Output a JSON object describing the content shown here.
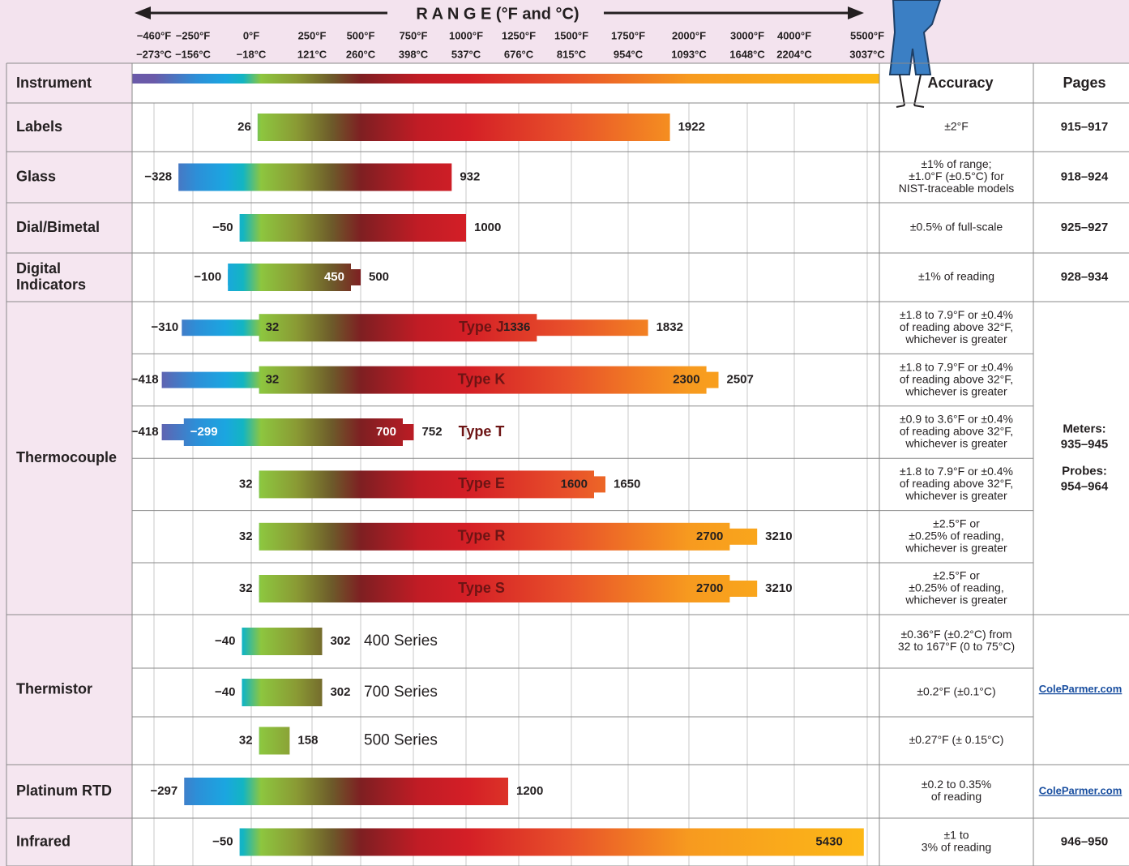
{
  "header": {
    "range_title": "R A N G E (°F and °C)",
    "instrument": "Instrument",
    "accuracy": "Accuracy",
    "pages": "Pages"
  },
  "scale": [
    {
      "value": -460,
      "label": "−460°F",
      "celsius": "−273°C"
    },
    {
      "value": -250,
      "label": "−250°F",
      "celsius": "−156°C"
    },
    {
      "value": 0,
      "label": "0°F",
      "celsius": "−18°C"
    },
    {
      "value": 250,
      "label": "250°F",
      "celsius": "121°C"
    },
    {
      "value": 500,
      "label": "500°F",
      "celsius": "260°C"
    },
    {
      "value": 750,
      "label": "750°F",
      "celsius": "398°C"
    },
    {
      "value": 1000,
      "label": "1000°F",
      "celsius": "537°C"
    },
    {
      "value": 1250,
      "label": "1250°F",
      "celsius": "676°C"
    },
    {
      "value": 1500,
      "label": "1500°F",
      "celsius": "815°C"
    },
    {
      "value": 1750,
      "label": "1750°F",
      "celsius": "954°C"
    },
    {
      "value": 2000,
      "label": "2000°F",
      "celsius": "1093°C"
    },
    {
      "value": 3000,
      "label": "3000°F",
      "celsius": "1648°C"
    },
    {
      "value": 4000,
      "label": "4000°F",
      "celsius": "2204°C"
    },
    {
      "value": 5500,
      "label": "5500°F",
      "celsius": "3037°C"
    }
  ],
  "rows": [
    {
      "instrument": [
        "Labels"
      ],
      "pages": [
        [
          "915–917"
        ]
      ],
      "bars": [
        {
          "accuracy": [
            "±2°F"
          ],
          "wide_low": {
            "value": 26,
            "label": "26"
          },
          "wide_high": {
            "value": 1922,
            "label": "1922"
          }
        }
      ]
    },
    {
      "instrument": [
        "Glass"
      ],
      "pages": [
        [
          "918–924"
        ]
      ],
      "bars": [
        {
          "accuracy": [
            "±1% of range;",
            "±1.0°F (±0.5°C) for",
            "NIST-traceable models"
          ],
          "wide_low": {
            "value": -328,
            "label": "−328"
          },
          "wide_high": {
            "value": 932,
            "label": "932"
          }
        }
      ]
    },
    {
      "instrument": [
        "Dial/Bimetal"
      ],
      "pages": [
        [
          "925–927"
        ]
      ],
      "bars": [
        {
          "accuracy": [
            "±0.5% of full-scale"
          ],
          "wide_low": {
            "value": -50,
            "label": "−50"
          },
          "wide_high": {
            "value": 1000,
            "label": "1000"
          }
        }
      ]
    },
    {
      "instrument": [
        "Digital",
        "Indicators"
      ],
      "pages": [
        [
          "928–934"
        ]
      ],
      "bars": [
        {
          "accuracy": [
            "±1% of reading"
          ],
          "wide_low": {
            "value": -100,
            "label": "−100"
          },
          "wide_high": {
            "value": 450,
            "label": "450"
          },
          "thin_high": {
            "value": 500,
            "label": "500"
          }
        }
      ]
    },
    {
      "instrument": [
        "Thermocouple"
      ],
      "pages": [
        [
          "Meters:",
          "935–945"
        ],
        [
          "Probes:",
          "954–964"
        ]
      ],
      "bars": [
        {
          "name": "Type J",
          "accuracy": [
            "±1.8 to 7.9°F or ±0.4%",
            "of reading above 32°F,",
            "whichever is greater"
          ],
          "thin_low": {
            "value": -310,
            "label": "−310"
          },
          "wide_low": {
            "value": 32,
            "label": "32"
          },
          "wide_high": {
            "value": 1336,
            "label": "1336"
          },
          "thin_high": {
            "value": 1832,
            "label": "1832"
          }
        },
        {
          "name": "Type K",
          "accuracy": [
            "±1.8 to 7.9°F or ±0.4%",
            "of reading above 32°F,",
            "whichever is greater"
          ],
          "thin_low": {
            "value": -418,
            "label": "−418"
          },
          "wide_low": {
            "value": 32,
            "label": "32"
          },
          "wide_high": {
            "value": 2300,
            "label": "2300"
          },
          "thin_high": {
            "value": 2507,
            "label": "2507"
          }
        },
        {
          "name": "Type T",
          "accuracy": [
            "±0.9 to 3.6°F or ±0.4%",
            "of reading above 32°F,",
            "whichever is greater"
          ],
          "thin_low": {
            "value": -418,
            "label": "−418"
          },
          "wide_low": {
            "value": -299,
            "label": "−299"
          },
          "wide_high": {
            "value": 700,
            "label": "700"
          },
          "thin_high": {
            "value": 752,
            "label": "752"
          }
        },
        {
          "name": "Type E",
          "accuracy": [
            "±1.8 to 7.9°F or ±0.4%",
            "of reading above 32°F,",
            "whichever is greater"
          ],
          "wide_low": {
            "value": 32,
            "label": "32"
          },
          "wide_high": {
            "value": 1600,
            "label": "1600"
          },
          "thin_high": {
            "value": 1650,
            "label": "1650"
          }
        },
        {
          "name": "Type R",
          "accuracy": [
            "±2.5°F or",
            "±0.25% of reading,",
            "whichever is greater"
          ],
          "wide_low": {
            "value": 32,
            "label": "32"
          },
          "wide_high": {
            "value": 2700,
            "label": "2700"
          },
          "thin_high": {
            "value": 3210,
            "label": "3210"
          }
        },
        {
          "name": "Type S",
          "accuracy": [
            "±2.5°F or",
            "±0.25% of reading,",
            "whichever is greater"
          ],
          "wide_low": {
            "value": 32,
            "label": "32"
          },
          "wide_high": {
            "value": 2700,
            "label": "2700"
          },
          "thin_high": {
            "value": 3210,
            "label": "3210"
          }
        }
      ]
    },
    {
      "instrument": [
        "Thermistor"
      ],
      "link": "ColeParmer.com",
      "bars": [
        {
          "name": "400 Series",
          "accuracy": [
            "±0.36°F (±0.2°C) from",
            "32 to 167°F (0 to 75°C)"
          ],
          "wide_low": {
            "value": -40,
            "label": "−40"
          },
          "wide_high": {
            "value": 302,
            "label": "302"
          }
        },
        {
          "name": "700 Series",
          "accuracy": [
            "±0.2°F (±0.1°C)"
          ],
          "wide_low": {
            "value": -40,
            "label": "−40"
          },
          "wide_high": {
            "value": 302,
            "label": "302"
          }
        },
        {
          "name": "500 Series",
          "accuracy": [
            "±0.27°F (± 0.15°C)"
          ],
          "wide_low": {
            "value": 32,
            "label": "32"
          },
          "wide_high": {
            "value": 158,
            "label": "158"
          }
        }
      ]
    },
    {
      "instrument": [
        "Platinum RTD"
      ],
      "link": "ColeParmer.com",
      "bars": [
        {
          "accuracy": [
            "±0.2 to 0.35%",
            "of reading"
          ],
          "wide_low": {
            "value": -297,
            "label": "−297"
          },
          "wide_high": {
            "value": 1200,
            "label": "1200"
          }
        }
      ]
    },
    {
      "instrument": [
        "Infrared"
      ],
      "pages": [
        [
          "946–950"
        ]
      ],
      "bars": [
        {
          "accuracy": [
            "±1 to",
            "3% of reading"
          ],
          "wide_low": {
            "value": -50,
            "label": "−50"
          },
          "wide_high": {
            "value": 5430,
            "label": "5430"
          }
        }
      ]
    }
  ]
}
